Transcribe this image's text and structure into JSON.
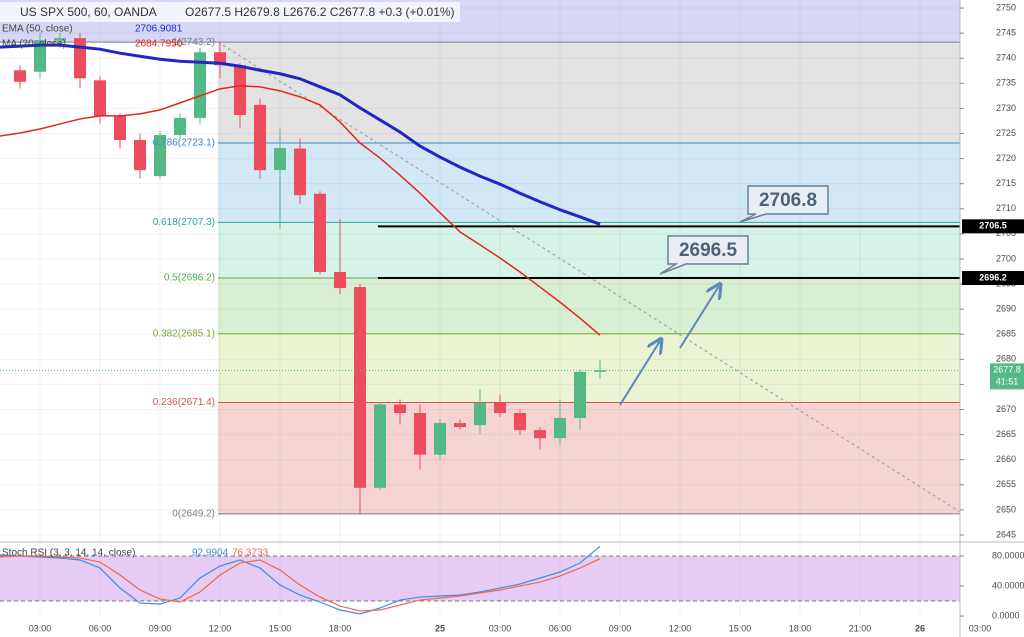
{
  "chart_data": [
    {
      "type": "candlestick",
      "title": "US SPX 500, 60, OANDA",
      "subtitle": "O2677.5 H2679.8 L2676.2 C2677.8 +0.3 (+0.01%)",
      "x": [
        1,
        2,
        3,
        4,
        5,
        6,
        7,
        8,
        9,
        10,
        11,
        12,
        13,
        14,
        15,
        16,
        17,
        18,
        19,
        20,
        21,
        22,
        23,
        24,
        25,
        26,
        27,
        28,
        29,
        30
      ],
      "open": [
        2737.6,
        2737.3,
        2743.5,
        2744,
        2735.6,
        2728.5,
        2723.7,
        2716.5,
        2724.7,
        2728.1,
        2741.2,
        2738.6,
        2730.7,
        2717.7,
        2722,
        2713,
        2697.4,
        2694.4,
        2654.4,
        2671,
        2669.3,
        2661,
        2667.3,
        2666.9,
        2671.3,
        2669.3,
        2665.9,
        2664.3,
        2668.3,
        2677.5
      ],
      "high": [
        2738.6,
        2745,
        2745,
        2745,
        2736.5,
        2729,
        2725,
        2725.5,
        2729,
        2742,
        2743.2,
        2739,
        2732,
        2726,
        2724,
        2713.5,
        2708,
        2695,
        2671.5,
        2672,
        2671,
        2668,
        2668,
        2674,
        2673,
        2670,
        2666.5,
        2672,
        2678,
        2679.8
      ],
      "low": [
        2734,
        2736,
        2742,
        2734,
        2727,
        2722,
        2716,
        2716,
        2724,
        2727,
        2736,
        2726,
        2716,
        2706,
        2711,
        2697,
        2693,
        2649.2,
        2654,
        2667,
        2658,
        2660,
        2666,
        2665,
        2668.5,
        2665,
        2662,
        2663,
        2666,
        2676.2
      ],
      "close": [
        2735.3,
        2743.6,
        2744,
        2736,
        2728.5,
        2723.7,
        2717.7,
        2724.7,
        2728.1,
        2741.2,
        2738.6,
        2728.7,
        2717.7,
        2722.1,
        2712.7,
        2697.4,
        2694.2,
        2654.4,
        2671,
        2669.3,
        2661,
        2667.3,
        2666.5,
        2671.3,
        2669.3,
        2665.9,
        2664.3,
        2668.3,
        2677.5,
        2677.8
      ],
      "up_color": "#53b987",
      "down_color": "#eb4d5c",
      "overlay_x": [
        0,
        1,
        2,
        3,
        4,
        5,
        6,
        7,
        8,
        9,
        10,
        11,
        12,
        13,
        14,
        15,
        16,
        17,
        18,
        19,
        20,
        21,
        22,
        23,
        24,
        25,
        26,
        27,
        28,
        29,
        30
      ],
      "overlays": [
        {
          "name": "EMA (50, close)",
          "legend_value": "2706.9081",
          "color": "#2126c4",
          "width": 3,
          "values": [
            2742.2,
            2742.4,
            2742.6,
            2742.6,
            2742.2,
            2741.8,
            2741,
            2740.4,
            2739.8,
            2739.4,
            2739.2,
            2739,
            2738.4,
            2737.6,
            2736.9,
            2735.9,
            2734.3,
            2732.7,
            2730.1,
            2727.7,
            2725.3,
            2722.5,
            2720.3,
            2718.3,
            2716.5,
            2714.9,
            2713.1,
            2711.4,
            2709.8,
            2708.4,
            2706.9
          ]
        },
        {
          "name": "MA (20, close)",
          "legend_value": "2684.7950",
          "color": "#e0281e",
          "width": 1.5,
          "values": [
            2724.5,
            2725.1,
            2725.9,
            2726.9,
            2727.9,
            2728.5,
            2728.5,
            2728.9,
            2729.7,
            2731.1,
            2732.5,
            2733.9,
            2734.5,
            2734.3,
            2733.5,
            2732.3,
            2730.7,
            2727.3,
            2723.1,
            2720.1,
            2716.7,
            2713.1,
            2709.2,
            2705.4,
            2702.8,
            2700.2,
            2697.4,
            2694.4,
            2691.4,
            2688.2,
            2684.8
          ]
        }
      ],
      "fib": [
        {
          "label": "1(2743.2)",
          "value": 2743.2,
          "color": "#787b86"
        },
        {
          "label": "0.786(2723.1)",
          "value": 2723.1,
          "color": "#3d85c6"
        },
        {
          "label": "0.618(2707.3)",
          "value": 2707.3,
          "color": "#26a69a"
        },
        {
          "label": "0.5(2696.2)",
          "value": 2696.2,
          "color": "#4caf50"
        },
        {
          "label": "0.382(2685.1)",
          "value": 2685.1,
          "color": "#81a630"
        },
        {
          "label": "0.236(2671.4)",
          "value": 2671.4,
          "color": "#d9534f"
        },
        {
          "label": "0(2649.2)",
          "value": 2649.2,
          "color": "#787b86"
        }
      ],
      "fib_band_colors": [
        "#e3e3e3",
        "#d2e8f5",
        "#d5f3e6",
        "#d9efd2",
        "#eaf3d2",
        "#f5d3d3"
      ],
      "top_band_color": "#d6d6f7",
      "levels": [
        2706.5,
        2696.2
      ],
      "callouts": [
        2706.8,
        2696.5
      ],
      "last_price": 2677.8,
      "countdown": "41:51",
      "xlim": [
        0,
        51.2
      ],
      "ylim": [
        2644,
        2751.6
      ],
      "yticks": [
        2645,
        2650,
        2655,
        2660,
        2665,
        2670,
        2675,
        2680,
        2685,
        2690,
        2695,
        2700,
        2705,
        2710,
        2715,
        2720,
        2725,
        2730,
        2735,
        2740,
        2745,
        2750
      ],
      "grid": true
    },
    {
      "type": "line",
      "title": "Stoch RSI (3, 3, 14, 14, close)",
      "x": [
        0,
        1,
        2,
        3,
        4,
        5,
        6,
        7,
        8,
        9,
        10,
        11,
        12,
        13,
        14,
        15,
        16,
        17,
        18,
        19,
        20,
        21,
        22,
        23,
        24,
        25,
        26,
        27,
        28,
        29,
        30
      ],
      "series": [
        {
          "legend_value": "92.9904",
          "color": "#3d8fe0",
          "values": [
            81.3,
            80,
            78.7,
            77.3,
            74.7,
            64,
            37.3,
            17.3,
            16,
            24,
            50.7,
            66.7,
            74.7,
            64,
            41.3,
            28,
            18.7,
            8,
            2.7,
            10.7,
            21.3,
            25.3,
            26.7,
            28,
            32,
            37.3,
            42.7,
            50.7,
            58.7,
            70.7,
            93
          ]
        },
        {
          "legend_value": "76.3733",
          "color": "#ef6a4c",
          "values": [
            78.7,
            80,
            80,
            78.7,
            77.3,
            72,
            54.7,
            34.7,
            22.7,
            18.7,
            32,
            54.7,
            70.7,
            74.7,
            61.3,
            41.3,
            25.3,
            13.3,
            6.7,
            8,
            14.7,
            21.3,
            24,
            26.7,
            30.7,
            34.7,
            40,
            45.3,
            53.3,
            64,
            76.4
          ]
        }
      ],
      "band": [
        20,
        80
      ],
      "band_color": "#e6ccf5",
      "xlim": [
        0,
        51.2
      ],
      "ylim": [
        -5.3,
        94.7
      ],
      "yticks": [
        {
          "value": 80,
          "label": "80.0000"
        },
        {
          "value": 40,
          "label": "40.0000"
        },
        {
          "value": 0,
          "label": "0.0000"
        }
      ],
      "xticks": [
        {
          "value": 2,
          "label": "03:00"
        },
        {
          "value": 5,
          "label": "06:00"
        },
        {
          "value": 8,
          "label": "09:00"
        },
        {
          "value": 11,
          "label": "12:00"
        },
        {
          "value": 14,
          "label": "15:00"
        },
        {
          "value": 17,
          "label": "18:00"
        },
        {
          "value": 22,
          "label": "25"
        },
        {
          "value": 25,
          "label": "03:00"
        },
        {
          "value": 28,
          "label": "06:00"
        },
        {
          "value": 31,
          "label": "09:00"
        },
        {
          "value": 34,
          "label": "12:00"
        },
        {
          "value": 37,
          "label": "15:00"
        },
        {
          "value": 40,
          "label": "18:00"
        },
        {
          "value": 43,
          "label": "21:00"
        },
        {
          "value": 46,
          "label": "26"
        },
        {
          "value": 49,
          "label": "03:00"
        }
      ],
      "grid": true
    }
  ]
}
